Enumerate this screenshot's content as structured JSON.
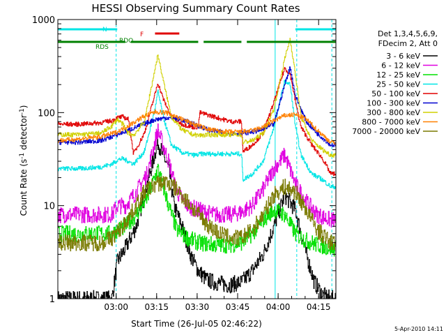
{
  "chart_data": {
    "type": "line",
    "title": "HESSI Observing Summary Count Rates",
    "xlabel": "Start Time (26-Jul-05 02:46:22)",
    "ylabel_main": "Count Rate (s",
    "ylabel_sup1": "-1",
    "ylabel_mid": " detector",
    "ylabel_sup2": "-1",
    "ylabel_end": ")",
    "x_unit": "minutes since 02:46:22",
    "xlim": [
      -8,
      95
    ],
    "ylim": [
      1,
      1000
    ],
    "yscale": "log",
    "xticks": [
      {
        "label": "03:00",
        "x": 13.6
      },
      {
        "label": "03:15",
        "x": 28.6
      },
      {
        "label": "03:30",
        "x": 43.6
      },
      {
        "label": "03:45",
        "x": 58.6
      },
      {
        "label": "04:00",
        "x": 73.6
      },
      {
        "label": "04:15",
        "x": 88.6
      }
    ],
    "yticks": [
      {
        "label": "1",
        "y": 1
      },
      {
        "label": "10",
        "y": 10
      },
      {
        "label": "100",
        "y": 100
      },
      {
        "label": "1000",
        "y": 1000
      }
    ],
    "legend_header": [
      "Det 1,3,4,5,6,9,",
      "FDecim 2, Att 0"
    ],
    "timestamp": "5-Apr-2010 14:11",
    "flags": [
      {
        "label": "N",
        "color": "#00e5e5",
        "segments": [
          [
            -8,
            14
          ],
          [
            80,
            95
          ]
        ]
      },
      {
        "label": "F",
        "color": "#e00000",
        "segments": [
          [
            28,
            37
          ]
        ]
      },
      {
        "label": "RDO",
        "color": "#008000",
        "segments": [
          [
            -8,
            17
          ],
          [
            19,
            44
          ],
          [
            46,
            60
          ],
          [
            62,
            95
          ]
        ]
      }
    ],
    "flag_labels": {
      "N": "N",
      "F": "F",
      "RDO": "RDO",
      "RDS": "RDS"
    },
    "vlines": [
      {
        "x": 13.6,
        "color": "#00e5e5"
      },
      {
        "x": 72.5,
        "color": "#00e5e5"
      },
      {
        "x": 80.5,
        "color": "#00e5e5"
      },
      {
        "x": 93.5,
        "color": "#00e5e5"
      }
    ],
    "series": [
      {
        "name": "3 - 6 keV",
        "color": "#000000",
        "x": [
          12,
          14,
          17,
          21,
          25,
          29,
          33,
          35,
          38,
          41,
          44,
          47,
          50,
          55,
          60,
          64,
          68,
          72,
          76,
          80,
          82,
          84,
          87,
          90,
          93
        ],
        "y": [
          1.0,
          2.5,
          3.5,
          6,
          17,
          48,
          25,
          10,
          6,
          3,
          2,
          1.6,
          1.5,
          1.4,
          1.5,
          2,
          3,
          6,
          13,
          9,
          5,
          3,
          1.5,
          1.1,
          1.0
        ]
      },
      {
        "name": "6 - 12 keV",
        "color": "#e000e0",
        "x": [
          -8,
          0,
          8,
          12,
          14,
          17,
          21,
          25,
          29,
          33,
          36,
          40,
          44,
          50,
          56,
          60,
          64,
          68,
          72,
          76,
          80,
          84,
          88,
          93
        ],
        "y": [
          8,
          8,
          8,
          8,
          10,
          10,
          14,
          22,
          65,
          30,
          14,
          10,
          9,
          8,
          8,
          8.5,
          10,
          15,
          25,
          35,
          17,
          11,
          8,
          7
        ]
      },
      {
        "name": "12 - 25 keV",
        "color": "#00e000",
        "x": [
          -8,
          0,
          8,
          12,
          14,
          17,
          21,
          25,
          29,
          33,
          36,
          40,
          44,
          50,
          56,
          60,
          64,
          68,
          72,
          76,
          80,
          84,
          88,
          93
        ],
        "y": [
          5,
          5,
          5,
          5,
          5.5,
          6,
          8,
          12,
          25,
          10,
          5.5,
          4.5,
          4,
          3.8,
          3.8,
          4,
          5,
          7,
          9,
          8,
          5,
          4.2,
          3.8,
          3.5
        ]
      },
      {
        "name": "25 - 50 keV",
        "color": "#00e5e5",
        "x": [
          -8,
          0,
          8,
          12,
          14,
          16,
          18,
          20,
          24,
          28,
          29,
          31,
          34,
          38,
          42,
          44,
          44.5,
          50,
          56,
          60,
          60.5,
          64,
          68,
          72,
          76,
          78,
          80,
          82,
          86,
          90,
          93
        ],
        "y": [
          25,
          25,
          26,
          28,
          31,
          32,
          30,
          28,
          38,
          110,
          170,
          90,
          45,
          37,
          35,
          35,
          36,
          36,
          36,
          36,
          19,
          22,
          30,
          70,
          220,
          200,
          70,
          35,
          22,
          19,
          16
        ]
      },
      {
        "name": "50 - 100 keV",
        "color": "#e00000",
        "x": [
          -8,
          0,
          8,
          12,
          14,
          16,
          18,
          20,
          24,
          28,
          29,
          31,
          34,
          38,
          42,
          44,
          44.5,
          50,
          56,
          60,
          60.5,
          64,
          68,
          72,
          76,
          78,
          80,
          82,
          86,
          90,
          93
        ],
        "y": [
          75,
          75,
          78,
          82,
          88,
          90,
          85,
          36,
          60,
          160,
          210,
          140,
          90,
          75,
          70,
          70,
          100,
          90,
          80,
          80,
          38,
          45,
          60,
          130,
          300,
          260,
          130,
          70,
          45,
          32,
          22
        ]
      },
      {
        "name": "100 - 300 keV",
        "color": "#0000d0",
        "x": [
          -8,
          0,
          8,
          14,
          20,
          24,
          28,
          32,
          36,
          40,
          44,
          48,
          52,
          56,
          60,
          64,
          68,
          72,
          76,
          78,
          80,
          84,
          88,
          93
        ],
        "y": [
          48,
          48,
          50,
          58,
          68,
          76,
          84,
          88,
          86,
          80,
          72,
          65,
          62,
          60,
          60,
          62,
          66,
          75,
          200,
          310,
          150,
          80,
          60,
          45
        ]
      },
      {
        "name": "300 - 800 keV",
        "color": "#d0d000",
        "x": [
          -8,
          0,
          8,
          12,
          14,
          16,
          18,
          20,
          24,
          28,
          29,
          31,
          34,
          38,
          42,
          44,
          50,
          56,
          60,
          60.5,
          64,
          68,
          72,
          76,
          78,
          80,
          82,
          86,
          90,
          93
        ],
        "y": [
          58,
          58,
          60,
          72,
          85,
          75,
          60,
          57,
          80,
          300,
          420,
          220,
          90,
          65,
          58,
          57,
          58,
          58,
          58,
          48,
          50,
          60,
          110,
          380,
          620,
          250,
          90,
          50,
          40,
          35
        ]
      },
      {
        "name": "800 - 7000 keV",
        "color": "#ff8000",
        "x": [
          -8,
          0,
          8,
          14,
          20,
          24,
          28,
          32,
          36,
          40,
          44,
          48,
          52,
          56,
          60,
          64,
          68,
          72,
          76,
          80,
          84,
          88,
          93
        ],
        "y": [
          50,
          52,
          55,
          62,
          78,
          92,
          102,
          100,
          90,
          80,
          72,
          66,
          63,
          62,
          62,
          64,
          70,
          82,
          93,
          95,
          85,
          65,
          48
        ]
      },
      {
        "name": "7000 - 20000 keV",
        "color": "#7a7a00",
        "x": [
          -8,
          0,
          8,
          12,
          16,
          20,
          24,
          28,
          32,
          36,
          40,
          44,
          48,
          52,
          56,
          60,
          64,
          68,
          72,
          76,
          80,
          84,
          88,
          93
        ],
        "y": [
          4,
          4,
          4,
          4.5,
          6,
          9,
          14,
          17,
          18,
          15,
          11,
          8,
          6,
          5,
          4.5,
          4.5,
          5.5,
          8,
          13,
          16,
          14,
          9,
          5.5,
          4
        ]
      }
    ]
  }
}
